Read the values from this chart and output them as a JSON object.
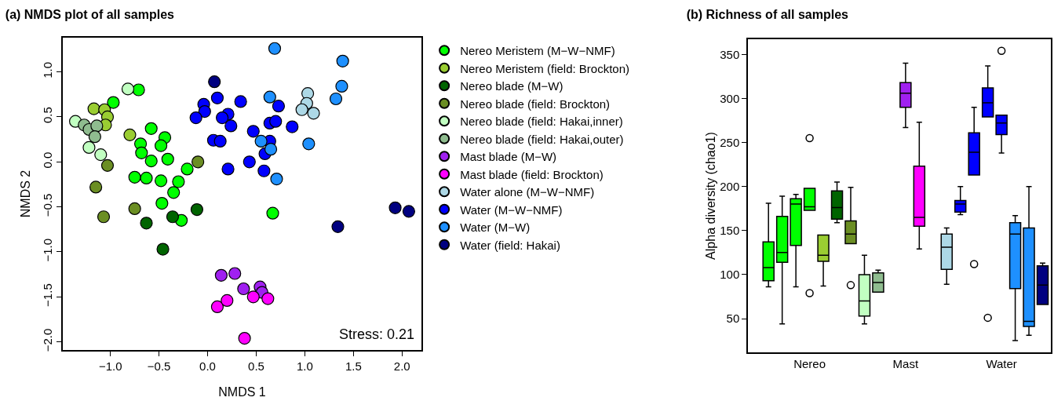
{
  "chart_data": [
    {
      "type": "scatter",
      "title": "(a) NMDS plot of all samples",
      "xlabel": "NMDS 1",
      "ylabel": "NMDS 2",
      "annotations": [
        "Stress: 0.21"
      ],
      "xlim": [
        -1.49,
        2.2
      ],
      "ylim": [
        -2.09,
        1.38
      ],
      "xticks": [
        {
          "value": -1,
          "label": "−1.0"
        },
        {
          "value": -0.5,
          "label": "−0.5"
        },
        {
          "value": 0,
          "label": "0.0"
        },
        {
          "value": 0.5,
          "label": "0.5"
        },
        {
          "value": 1,
          "label": "1.0"
        },
        {
          "value": 1.5,
          "label": "1.5"
        },
        {
          "value": 2,
          "label": "2.0"
        }
      ],
      "yticks": [
        {
          "value": -2,
          "label": "−2.0"
        },
        {
          "value": -1.5,
          "label": "−1.5"
        },
        {
          "value": -1,
          "label": "−1.0"
        },
        {
          "value": -0.5,
          "label": "−0.5"
        },
        {
          "value": 0,
          "label": "0.0"
        },
        {
          "value": 0.5,
          "label": "0.5"
        },
        {
          "value": 1,
          "label": "1.0"
        }
      ],
      "legend": "right",
      "marker": "circle",
      "series": [
        {
          "name": "Nereo Meristem (M−W−NMF)",
          "color": "#00ff00",
          "x": [
            -0.97,
            -0.71,
            -0.58,
            -0.44,
            -0.48,
            -0.69,
            -0.68,
            -0.58,
            -0.41,
            -0.75,
            -0.63,
            -0.48,
            -0.3,
            -0.21,
            -0.35,
            -0.47,
            0.67,
            -0.27
          ],
          "values": [
            0.66,
            0.8,
            0.37,
            0.27,
            0.18,
            0.2,
            0.1,
            0.01,
            0.03,
            -0.17,
            -0.18,
            -0.21,
            -0.22,
            -0.08,
            -0.34,
            -0.46,
            -0.57,
            -0.65
          ]
        },
        {
          "name": "Nereo Meristem (field: Brockton)",
          "color": "#9acd32",
          "x": [
            -1.17,
            -1.06,
            -1.03,
            -1.05,
            -0.8
          ],
          "values": [
            0.59,
            0.58,
            0.5,
            0.41,
            0.3
          ]
        },
        {
          "name": "Nereo blade (M−W)",
          "color": "#006400",
          "x": [
            -0.11,
            -0.36,
            -0.63,
            -0.46
          ],
          "values": [
            -0.53,
            -0.61,
            -0.68,
            -0.97
          ]
        },
        {
          "name": "Nereo blade (field: Brockton)",
          "color": "#6b8e23",
          "x": [
            -1.03,
            -1.15,
            -0.1,
            -0.75,
            -1.07
          ],
          "values": [
            -0.04,
            -0.28,
            0.0,
            -0.52,
            -0.61
          ]
        },
        {
          "name": "Nereo blade (field: Hakai,inner)",
          "color": "#c1ffc1",
          "x": [
            -1.36,
            -0.82,
            -1.22,
            -1.1
          ],
          "values": [
            0.45,
            0.81,
            0.16,
            0.08
          ]
        },
        {
          "name": "Nereo blade (field: Hakai,outer)",
          "color": "#8fbc8f",
          "x": [
            -1.27,
            -1.22,
            -1.14,
            -1.16
          ],
          "values": [
            0.41,
            0.36,
            0.4,
            0.28
          ]
        },
        {
          "name": "Mast blade (M−W)",
          "color": "#a020f0",
          "x": [
            0.14,
            0.28,
            0.37,
            0.54,
            0.56
          ],
          "values": [
            -1.26,
            -1.24,
            -1.41,
            -1.39,
            -1.45
          ]
        },
        {
          "name": "Mast blade (field: Brockton)",
          "color": "#ff00ff",
          "x": [
            0.1,
            0.2,
            0.47,
            0.62,
            0.38
          ],
          "values": [
            -1.61,
            -1.54,
            -1.5,
            -1.52,
            -1.96
          ]
        },
        {
          "name": "Water alone (M−W−NMF)",
          "color": "#add8e6",
          "x": [
            1.03,
            1.02,
            0.97,
            1.09
          ],
          "values": [
            0.76,
            0.65,
            0.58,
            0.54
          ]
        },
        {
          "name": "Water (M−W−NMF)",
          "color": "#0000ff",
          "x": [
            -0.04,
            -0.03,
            -0.12,
            0.1,
            0.21,
            0.15,
            0.24,
            0.34,
            0.73,
            0.87,
            0.64,
            0.7,
            0.47,
            0.64,
            0.59,
            0.06,
            0.13,
            0.43,
            0.21,
            0.58
          ],
          "values": [
            0.64,
            0.56,
            0.49,
            0.71,
            0.53,
            0.49,
            0.4,
            0.67,
            0.62,
            0.39,
            0.43,
            0.45,
            0.34,
            0.23,
            0.09,
            0.24,
            0.23,
            0.0,
            -0.08,
            -0.1
          ]
        },
        {
          "name": "Water (M−W)",
          "color": "#1e90ff",
          "x": [
            0.69,
            1.39,
            1.38,
            1.32,
            0.64,
            1.04,
            0.55,
            0.65,
            0.71
          ],
          "values": [
            1.26,
            1.12,
            0.84,
            0.7,
            0.72,
            0.2,
            0.23,
            0.14,
            -0.19
          ]
        },
        {
          "name": "Water (field: Hakai)",
          "color": "#000080",
          "x": [
            0.07,
            1.93,
            2.07,
            1.34
          ],
          "values": [
            0.89,
            -0.51,
            -0.55,
            -0.72
          ]
        }
      ]
    },
    {
      "type": "box",
      "title": "(b) Richness of all samples",
      "ylabel": "Alpha diversity (chao1)",
      "categories": [
        null,
        null,
        null,
        "Nereo",
        null,
        null,
        null,
        null,
        null,
        null,
        "Mast",
        null,
        null,
        null,
        null,
        null,
        null,
        "Water",
        null,
        null,
        null
      ],
      "ylim": [
        11.7,
        367.2
      ],
      "yticks": [
        50,
        100,
        150,
        200,
        250,
        300,
        350
      ],
      "series": [
        {
          "color": "#00ff00",
          "boxes": [
            {
              "low": 86,
              "q1": 93,
              "median": 108,
              "q3": 137,
              "high": 181
            },
            {
              "low": 44,
              "q1": 114,
              "median": 125,
              "q3": 166,
              "high": 189
            },
            {
              "low": 86,
              "q1": 133,
              "median": 180,
              "q3": 186,
              "high": 191
            },
            {
              "low": 173,
              "q1": 173,
              "median": 177,
              "q3": 198,
              "high": 198,
              "outliers": [
                255,
                79
              ]
            },
            null,
            null,
            null,
            null,
            null,
            null,
            null,
            null,
            null,
            null,
            null,
            null,
            null,
            null,
            null,
            null,
            null
          ]
        },
        {
          "color": "#9acd32",
          "boxes": [
            null,
            null,
            null,
            null,
            {
              "low": 87,
              "q1": 115,
              "median": 122,
              "q3": 145,
              "high": 145
            },
            null,
            null,
            null,
            null,
            null,
            null,
            null,
            null,
            null,
            null,
            null,
            null,
            null,
            null,
            null,
            null
          ]
        },
        {
          "color": "#006400",
          "boxes": [
            null,
            null,
            null,
            null,
            null,
            {
              "low": 159,
              "q1": 163,
              "median": 176,
              "q3": 195,
              "high": 205
            },
            null,
            null,
            null,
            null,
            null,
            null,
            null,
            null,
            null,
            null,
            null,
            null,
            null,
            null,
            null
          ]
        },
        {
          "color": "#6b8e23",
          "boxes": [
            null,
            null,
            null,
            null,
            null,
            null,
            {
              "low": 135,
              "q1": 135,
              "median": 146,
              "q3": 161,
              "high": 199,
              "outliers": [
                88
              ]
            },
            null,
            null,
            null,
            null,
            null,
            null,
            null,
            null,
            null,
            null,
            null,
            null,
            null,
            null
          ]
        },
        {
          "color": "#c1ffc1",
          "boxes": [
            null,
            null,
            null,
            null,
            null,
            null,
            null,
            {
              "low": 44,
              "q1": 53,
              "median": 70,
              "q3": 100,
              "high": 122
            },
            null,
            null,
            null,
            null,
            null,
            null,
            null,
            null,
            null,
            null,
            null,
            null,
            null
          ]
        },
        {
          "color": "#8fbc8f",
          "boxes": [
            null,
            null,
            null,
            null,
            null,
            null,
            null,
            null,
            {
              "low": 80,
              "q1": 80,
              "median": 91,
              "q3": 102,
              "high": 105
            },
            null,
            null,
            null,
            null,
            null,
            null,
            null,
            null,
            null,
            null,
            null,
            null
          ]
        },
        {
          "color": "#a020f0",
          "boxes": [
            null,
            null,
            null,
            null,
            null,
            null,
            null,
            null,
            null,
            null,
            {
              "low": 267,
              "q1": 290,
              "median": 306,
              "q3": 318,
              "high": 340
            },
            null,
            null,
            null,
            null,
            null,
            null,
            null,
            null,
            null,
            null
          ]
        },
        {
          "color": "#ff00ff",
          "boxes": [
            null,
            null,
            null,
            null,
            null,
            null,
            null,
            null,
            null,
            null,
            null,
            {
              "low": 129,
              "q1": 155,
              "median": 165,
              "q3": 223,
              "high": 273
            },
            null,
            null,
            null,
            null,
            null,
            null,
            null,
            null,
            null
          ]
        },
        {
          "color": "#add8e6",
          "boxes": [
            null,
            null,
            null,
            null,
            null,
            null,
            null,
            null,
            null,
            null,
            null,
            null,
            null,
            {
              "low": 89,
              "q1": 106,
              "median": 131,
              "q3": 146,
              "high": 153
            },
            null,
            null,
            null,
            null,
            null,
            null,
            null
          ]
        },
        {
          "color": "#0000ff",
          "boxes": [
            null,
            null,
            null,
            null,
            null,
            null,
            null,
            null,
            null,
            null,
            null,
            null,
            null,
            null,
            {
              "low": 168,
              "q1": 171,
              "median": 180,
              "q3": 184,
              "high": 200
            },
            {
              "low": 213,
              "q1": 213,
              "median": 239,
              "q3": 261,
              "high": 290,
              "outliers": [
                112
              ]
            },
            {
              "low": 279,
              "q1": 279,
              "median": 295,
              "q3": 312,
              "high": 337,
              "outliers": [
                51
              ]
            },
            {
              "low": 238,
              "q1": 259,
              "median": 272,
              "q3": 281,
              "high": 281,
              "outliers": [
                354
              ]
            },
            null,
            null,
            null
          ]
        },
        {
          "color": "#1e90ff",
          "boxes": [
            null,
            null,
            null,
            null,
            null,
            null,
            null,
            null,
            null,
            null,
            null,
            null,
            null,
            null,
            null,
            null,
            null,
            null,
            {
              "low": 25,
              "q1": 84,
              "median": 146,
              "q3": 159,
              "high": 167
            },
            {
              "low": 31,
              "q1": 41,
              "median": 47,
              "q3": 153,
              "high": 200
            },
            null
          ]
        },
        {
          "color": "#000080",
          "boxes": [
            null,
            null,
            null,
            null,
            null,
            null,
            null,
            null,
            null,
            null,
            null,
            null,
            null,
            null,
            null,
            null,
            null,
            null,
            null,
            null,
            {
              "low": 66,
              "q1": 66,
              "median": 88,
              "q3": 110,
              "high": 113
            }
          ]
        }
      ]
    }
  ]
}
